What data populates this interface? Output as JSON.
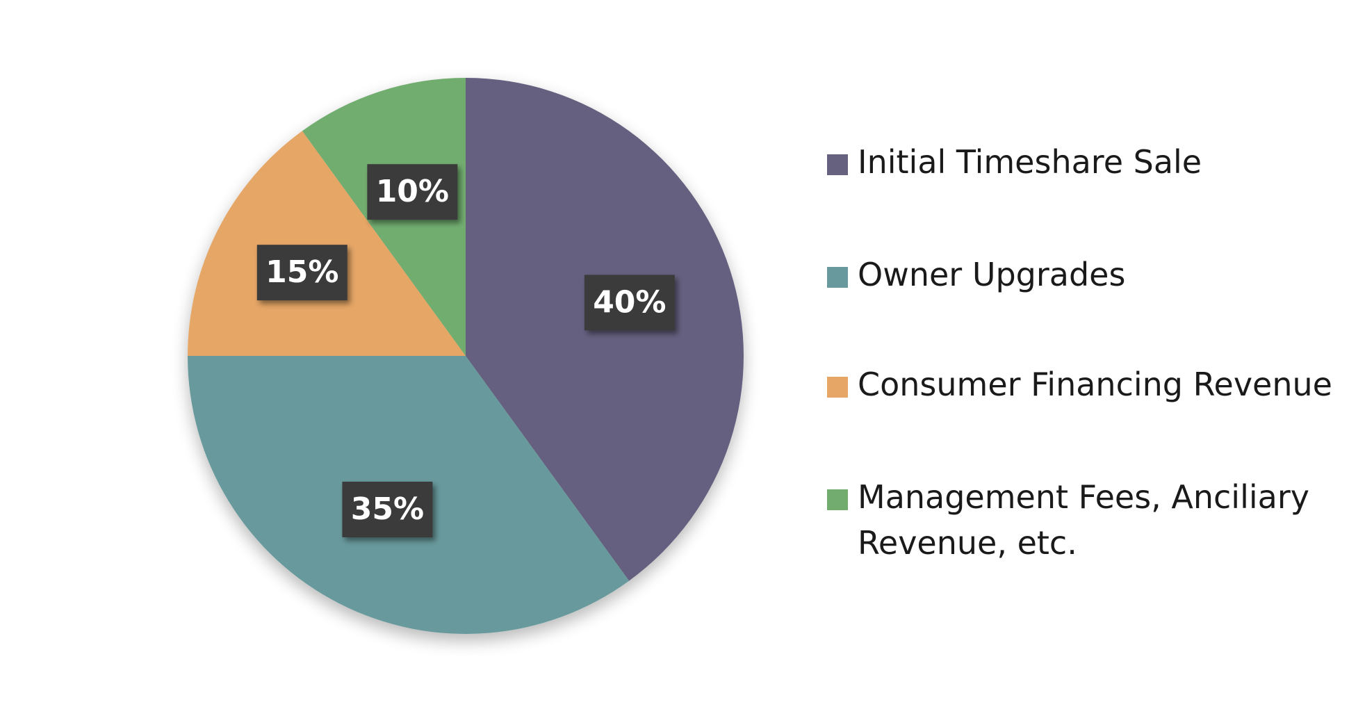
{
  "chart_data": {
    "type": "pie",
    "title": "",
    "slices": [
      {
        "label": "Initial Timeshare Sale",
        "value": 40,
        "display": "40%",
        "color": "#65617f"
      },
      {
        "label": "Owner Upgrades",
        "value": 35,
        "display": "35%",
        "color": "#68999c"
      },
      {
        "label": "Consumer Financing Revenue",
        "value": 15,
        "display": "15%",
        "color": "#e5a666"
      },
      {
        "label": "Management Fees, Anciliary Revenue, etc.",
        "value": 10,
        "display": "10%",
        "color": "#72ad6f"
      }
    ],
    "legend_position": "right",
    "start_angle": "top",
    "direction": "clockwise",
    "label_style": "dark boxes with white bold percentages"
  },
  "legend": {
    "items": [
      {
        "label": "Initial Timeshare Sale",
        "color": "#65617f"
      },
      {
        "label": "Owner Upgrades",
        "color": "#68999c"
      },
      {
        "label": "Consumer Financing Revenue",
        "color": "#e5a666"
      },
      {
        "label": "Management Fees, Anciliary Revenue, etc.",
        "color": "#72ad6f"
      }
    ]
  },
  "colors": {
    "label_box": "#3a3a3a",
    "label_text": "#ffffff"
  }
}
